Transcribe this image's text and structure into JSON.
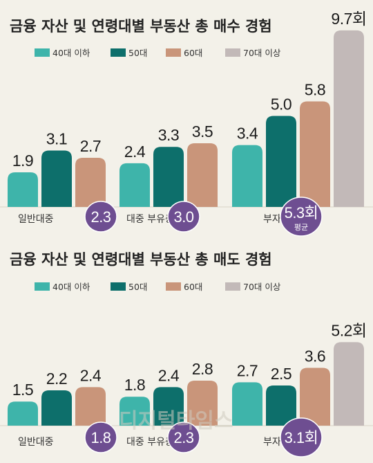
{
  "colors": {
    "series": [
      "#3eb4aa",
      "#0d6f6b",
      "#c9957a",
      "#c2b9b8"
    ],
    "badge": "#6e4e91",
    "text": "#222222",
    "background": "#f3f1e9"
  },
  "watermark": "디지털타임스",
  "chart_data": [
    {
      "type": "bar",
      "title": "금융 자산 및 연령대별 부동산 총 매수 경험",
      "legend": [
        "40대 이하",
        "50대",
        "60대",
        "70대 이상"
      ],
      "categories": [
        "일반대중",
        "대중 부유층",
        "부자"
      ],
      "series": [
        {
          "name": "40대 이하",
          "values": [
            1.9,
            2.4,
            3.4
          ]
        },
        {
          "name": "50대",
          "values": [
            3.1,
            3.3,
            5.0
          ]
        },
        {
          "name": "60대",
          "values": [
            2.7,
            3.5,
            5.8
          ]
        },
        {
          "name": "70대 이상",
          "values": [
            null,
            null,
            9.7
          ]
        }
      ],
      "value_labels": [
        [
          "1.9",
          "3.1",
          "2.7",
          ""
        ],
        [
          "2.4",
          "3.3",
          "3.5",
          ""
        ],
        [
          "3.4",
          "5.0",
          "5.8",
          "9.7회"
        ]
      ],
      "averages": [
        "2.3",
        "3.0",
        "5.3회"
      ],
      "average_note": "평균",
      "ylim": [
        0,
        10
      ]
    },
    {
      "type": "bar",
      "title": "금융 자산 및 연령대별 부동산 총 매도 경험",
      "legend": [
        "40대 이하",
        "50대",
        "60대",
        "70대 이상"
      ],
      "categories": [
        "일반대중",
        "대중 부유층",
        "부자"
      ],
      "series": [
        {
          "name": "40대 이하",
          "values": [
            1.5,
            1.8,
            2.7
          ]
        },
        {
          "name": "50대",
          "values": [
            2.2,
            2.4,
            2.5
          ]
        },
        {
          "name": "60대",
          "values": [
            2.4,
            2.8,
            3.6
          ]
        },
        {
          "name": "70대 이상",
          "values": [
            null,
            null,
            5.2
          ]
        }
      ],
      "value_labels": [
        [
          "1.5",
          "2.2",
          "2.4",
          ""
        ],
        [
          "1.8",
          "2.4",
          "2.8",
          ""
        ],
        [
          "2.7",
          "2.5",
          "3.6",
          "5.2회"
        ]
      ],
      "averages": [
        "1.8",
        "2.3",
        "3.1회"
      ],
      "ylim": [
        0,
        6
      ]
    }
  ]
}
